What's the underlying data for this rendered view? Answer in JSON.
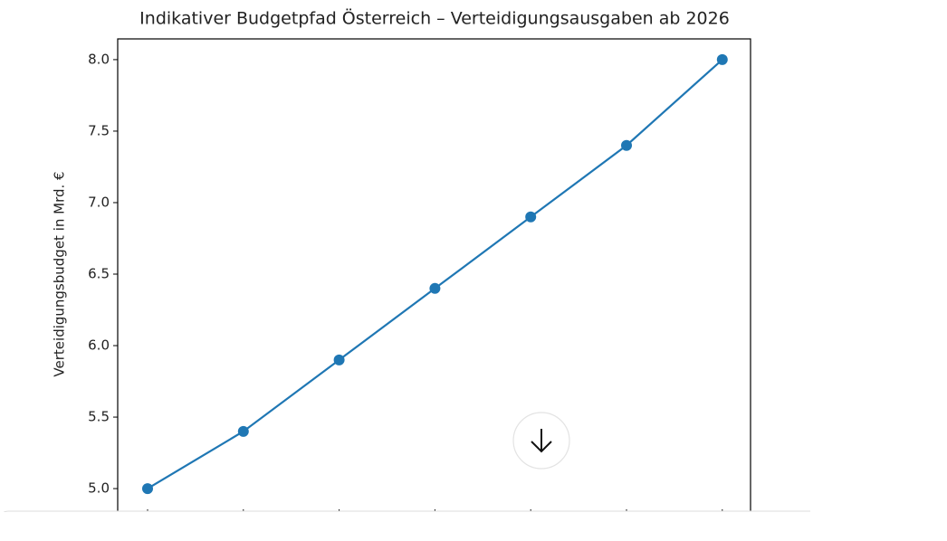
{
  "chart_data": {
    "type": "line",
    "title": "Indikativer Budgetpfad Österreich – Verteidigungsausgaben ab 2026",
    "y_label": "Verteidigungsbudget in Mrd. €",
    "categories": [
      null,
      null,
      null,
      null,
      null,
      null,
      null
    ],
    "series": [
      {
        "name": null,
        "color": "#1f77b4",
        "values": [
          5.0,
          5.4,
          5.9,
          6.4,
          6.9,
          7.4,
          8.0
        ]
      }
    ],
    "ylim": [
      4.855,
      8.145
    ],
    "yticks": [
      {
        "value": 5,
        "label": "5.0"
      },
      5.5,
      {
        "value": 6,
        "label": "6.0"
      },
      6.5,
      {
        "value": 7,
        "label": "7.0"
      },
      7.5,
      {
        "value": 8,
        "label": "8.0"
      }
    ],
    "grid": false
  }
}
